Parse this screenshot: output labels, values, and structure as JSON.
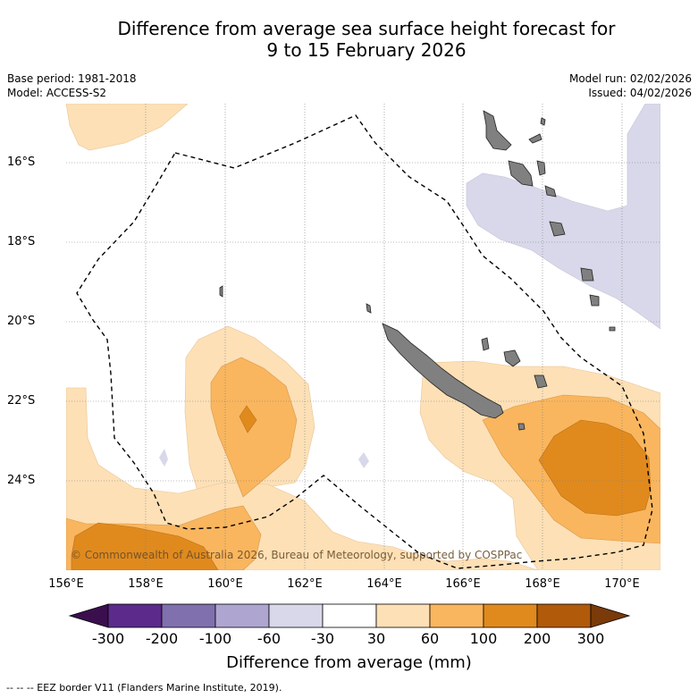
{
  "title": {
    "line1": "Difference from average sea surface height forecast for",
    "line2": "9 to 15 February 2026"
  },
  "meta": {
    "base_period": "Base period: 1981-2018",
    "model": "Model: ACCESS-S2",
    "model_run": "Model run: 02/02/2026",
    "issued": "Issued: 04/02/2026"
  },
  "map": {
    "latitude_labels": [
      "16°S",
      "18°S",
      "20°S",
      "22°S",
      "24°S"
    ],
    "longitude_labels": [
      "156°E",
      "158°E",
      "160°E",
      "162°E",
      "164°E",
      "166°E",
      "168°E",
      "170°E"
    ],
    "copyright": "© Commonwealth of Australia 2026, Bureau of Meteorology, supported by COSPPac",
    "colors": {
      "land": "#808080",
      "neg_30_60": "#d8d8ea",
      "pos_30_60": "#fde0b6",
      "pos_60_100": "#f9b65e",
      "pos_100_200": "#e08a1e",
      "ocean": "#ffffff"
    }
  },
  "colorbar": {
    "ticks": [
      "-300",
      "-200",
      "-100",
      "-60",
      "-30",
      "30",
      "60",
      "100",
      "200",
      "300"
    ],
    "colors": [
      "#3b0f4e",
      "#5b2a8a",
      "#8070ae",
      "#aea6d0",
      "#d8d8ea",
      "#ffffff",
      "#fde0b6",
      "#f9b65e",
      "#e08a1e",
      "#b05a0a",
      "#7a3a0a"
    ],
    "label": "Difference from average (mm)"
  },
  "legend": {
    "eez_border": "--  --  -- EEZ border V11 (Flanders Marine Institute, 2019)."
  }
}
